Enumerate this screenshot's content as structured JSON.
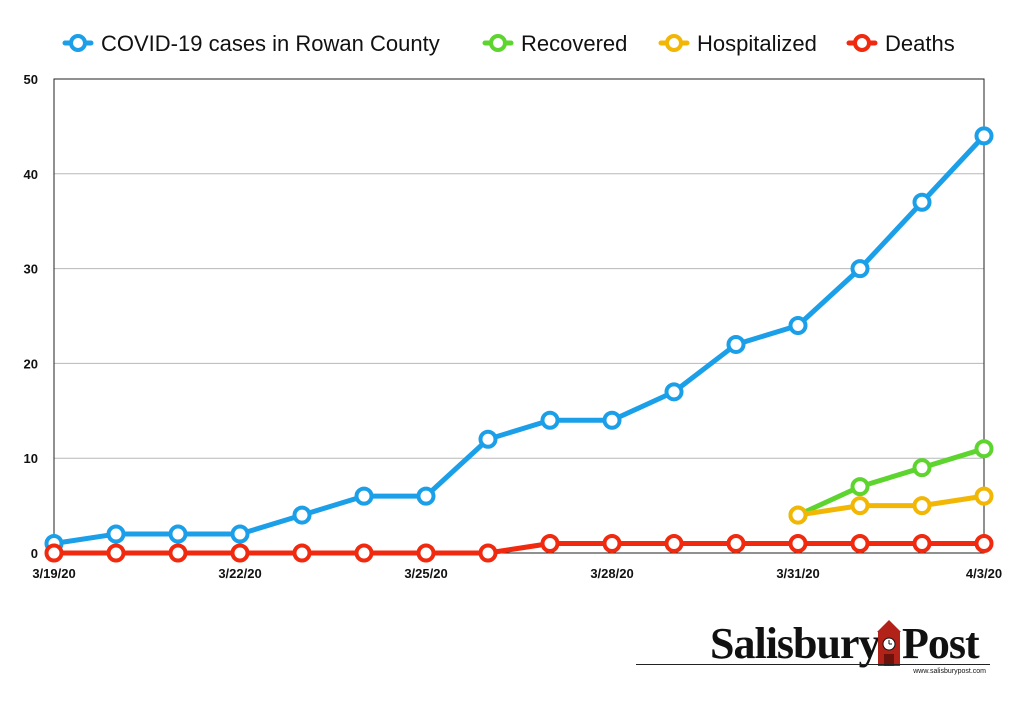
{
  "chart_data": {
    "type": "line",
    "categories": [
      "3/19/20",
      "3/20/20",
      "3/21/20",
      "3/22/20",
      "3/23/20",
      "3/24/20",
      "3/25/20",
      "3/26/20",
      "3/27/20",
      "3/28/20",
      "3/29/20",
      "3/30/20",
      "3/31/20",
      "4/1/20",
      "4/2/20",
      "4/3/20"
    ],
    "x_tick_labels": [
      "3/19/20",
      "",
      "",
      "3/22/20",
      "",
      "",
      "3/25/20",
      "",
      "",
      "3/28/20",
      "",
      "",
      "3/31/20",
      "",
      "",
      "4/3/20"
    ],
    "y_ticks": [
      0,
      10,
      20,
      30,
      40,
      50
    ],
    "ylim": [
      0,
      50
    ],
    "grid": true,
    "legend_position": "top",
    "series": [
      {
        "name": "COVID-19 cases in Rowan County",
        "color": "#1a9fe8",
        "values": [
          1,
          2,
          2,
          2,
          4,
          6,
          6,
          12,
          14,
          14,
          17,
          22,
          24,
          30,
          37,
          44
        ]
      },
      {
        "name": "Recovered",
        "color": "#5ed42f",
        "values": [
          null,
          null,
          null,
          null,
          null,
          null,
          null,
          null,
          null,
          null,
          null,
          null,
          4,
          7,
          9,
          11
        ]
      },
      {
        "name": "Hospitalized",
        "color": "#f2b705",
        "values": [
          null,
          null,
          null,
          null,
          null,
          null,
          null,
          null,
          null,
          null,
          null,
          null,
          4,
          5,
          5,
          6
        ]
      },
      {
        "name": "Deaths",
        "color": "#f0290f",
        "values": [
          0,
          0,
          0,
          0,
          0,
          0,
          0,
          0,
          1,
          1,
          1,
          1,
          1,
          1,
          1,
          1
        ]
      }
    ]
  },
  "logo": {
    "word1": "Salisbury",
    "word2": "Post",
    "url": "www.salisburypost.com"
  }
}
